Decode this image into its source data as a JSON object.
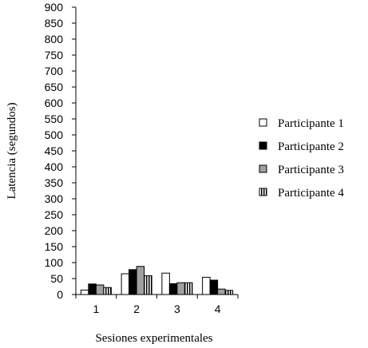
{
  "chart_data": {
    "type": "bar",
    "categories": [
      "1",
      "2",
      "3",
      "4"
    ],
    "series": [
      {
        "name": "Participante 1",
        "values": [
          14,
          65,
          67,
          54
        ],
        "color": "#ffffff",
        "pattern": "none"
      },
      {
        "name": "Participante 2",
        "values": [
          33,
          78,
          34,
          45
        ],
        "color": "#000000",
        "pattern": "none"
      },
      {
        "name": "Participante 3",
        "values": [
          30,
          88,
          37,
          17
        ],
        "color": "#a0a0a0",
        "pattern": "none"
      },
      {
        "name": "Participante 4",
        "values": [
          22,
          59,
          37,
          13
        ],
        "color": "#ffffff",
        "pattern": "vertical-stripes"
      }
    ],
    "title": "",
    "xlabel": "Sesiones experimentales",
    "ylabel": "Latencia (segundos)",
    "ylim": [
      0,
      900
    ],
    "yticks": [
      0,
      50,
      100,
      150,
      200,
      250,
      300,
      350,
      400,
      450,
      500,
      550,
      600,
      650,
      700,
      750,
      800,
      850,
      900
    ],
    "grid": false,
    "legend_position": "right"
  }
}
